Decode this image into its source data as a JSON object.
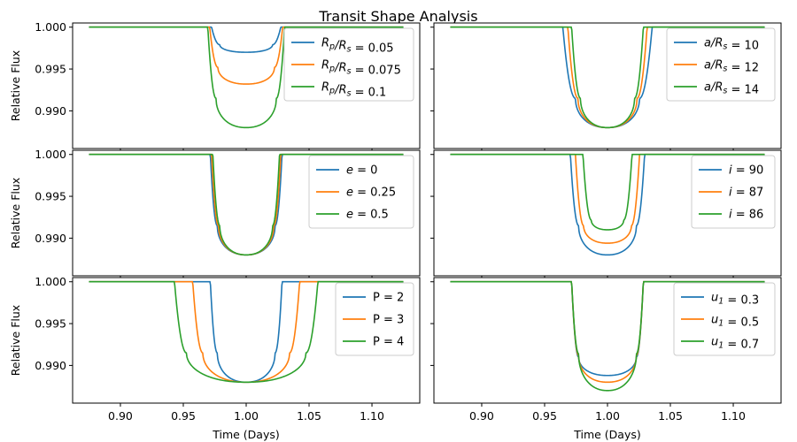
{
  "chart_data": {
    "type": "line",
    "title": "Transit Shape Analysis",
    "xlabel": "Time (Days)",
    "ylabel": "Relative Flux",
    "xlim": [
      0.862,
      1.138
    ],
    "ylim": [
      0.9855,
      1.0005
    ],
    "xticks": [
      "0.90",
      "0.95",
      "1.00",
      "1.05",
      "1.10"
    ],
    "yticks": [
      "1.000",
      "0.995",
      "0.990"
    ],
    "colors": [
      "#1f77b4",
      "#ff7f0e",
      "#2ca02c"
    ],
    "legend_placement": "top-right",
    "panels": [
      {
        "series": [
          {
            "name": "R_p/R_s = 0.05",
            "legend_parts": [
              [
                "R",
                "i"
              ],
              [
                "p",
                "sub"
              ],
              [
                "/",
                "i"
              ],
              [
                "R",
                "i"
              ],
              [
                "s",
                "sub"
              ],
              [
                " = 0.05",
                "n"
              ]
            ],
            "t1": 0.9725,
            "t2": 0.979,
            "t3": 1.021,
            "t4": 1.0275,
            "depth_center": 0.003,
            "depth_edge": 0.0021
          },
          {
            "name": "R_p/R_s = 0.075",
            "legend_parts": [
              [
                "R",
                "i"
              ],
              [
                "p",
                "sub"
              ],
              [
                "/",
                "i"
              ],
              [
                "R",
                "i"
              ],
              [
                "s",
                "sub"
              ],
              [
                " = 0.075",
                "n"
              ]
            ],
            "t1": 0.971,
            "t2": 0.9775,
            "t3": 1.0225,
            "t4": 1.029,
            "depth_center": 0.0068,
            "depth_edge": 0.0048
          },
          {
            "name": "R_p/R_s = 0.1",
            "legend_parts": [
              [
                "R",
                "i"
              ],
              [
                "p",
                "sub"
              ],
              [
                "/",
                "i"
              ],
              [
                "R",
                "i"
              ],
              [
                "s",
                "sub"
              ],
              [
                " = 0.1",
                "n"
              ]
            ],
            "t1": 0.9695,
            "t2": 0.976,
            "t3": 1.024,
            "t4": 1.0305,
            "depth_center": 0.012,
            "depth_edge": 0.0085
          }
        ]
      },
      {
        "series": [
          {
            "name": "a/R_s = 10",
            "legend_parts": [
              [
                "a",
                "i"
              ],
              [
                "/",
                "i"
              ],
              [
                "R",
                "i"
              ],
              [
                "s",
                "sub"
              ],
              [
                " = 10",
                "n"
              ]
            ],
            "t1": 0.9645,
            "t2": 0.9745,
            "t3": 1.0255,
            "t4": 1.0355,
            "depth_center": 0.012,
            "depth_edge": 0.0085
          },
          {
            "name": "a/R_s = 12",
            "legend_parts": [
              [
                "a",
                "i"
              ],
              [
                "/",
                "i"
              ],
              [
                "R",
                "i"
              ],
              [
                "s",
                "sub"
              ],
              [
                " = 12",
                "n"
              ]
            ],
            "t1": 0.9685,
            "t2": 0.9765,
            "t3": 1.0235,
            "t4": 1.0315,
            "depth_center": 0.012,
            "depth_edge": 0.0085
          },
          {
            "name": "a/R_s = 14",
            "legend_parts": [
              [
                "a",
                "i"
              ],
              [
                "/",
                "i"
              ],
              [
                "R",
                "i"
              ],
              [
                "s",
                "sub"
              ],
              [
                " = 14",
                "n"
              ]
            ],
            "t1": 0.9715,
            "t2": 0.9785,
            "t3": 1.0215,
            "t4": 1.0285,
            "depth_center": 0.012,
            "depth_edge": 0.0085
          }
        ]
      },
      {
        "series": [
          {
            "name": "e = 0",
            "legend_parts": [
              [
                "e",
                "i"
              ],
              [
                " = 0",
                "n"
              ]
            ],
            "t1": 0.9715,
            "t2": 0.977,
            "t3": 1.023,
            "t4": 1.0285,
            "depth_center": 0.012,
            "depth_edge": 0.0085
          },
          {
            "name": "e = 0.25",
            "legend_parts": [
              [
                "e",
                "i"
              ],
              [
                " = 0.25",
                "n"
              ]
            ],
            "t1": 0.9725,
            "t2": 0.978,
            "t3": 1.022,
            "t4": 1.0275,
            "depth_center": 0.012,
            "depth_edge": 0.0085
          },
          {
            "name": "e = 0.5",
            "legend_parts": [
              [
                "e",
                "i"
              ],
              [
                " = 0.5",
                "n"
              ]
            ],
            "t1": 0.9735,
            "t2": 0.979,
            "t3": 1.021,
            "t4": 1.0265,
            "depth_center": 0.012,
            "depth_edge": 0.0085
          }
        ]
      },
      {
        "series": [
          {
            "name": "i = 90",
            "legend_parts": [
              [
                "i",
                "i"
              ],
              [
                " = 90",
                "n"
              ]
            ],
            "t1": 0.9705,
            "t2": 0.977,
            "t3": 1.023,
            "t4": 1.0295,
            "depth_center": 0.012,
            "depth_edge": 0.0085
          },
          {
            "name": "i = 87",
            "legend_parts": [
              [
                "i",
                "i"
              ],
              [
                " = 87",
                "n"
              ]
            ],
            "t1": 0.9745,
            "t2": 0.981,
            "t3": 1.019,
            "t4": 1.0255,
            "depth_center": 0.0106,
            "depth_edge": 0.0085
          },
          {
            "name": "i = 86",
            "legend_parts": [
              [
                "i",
                "i"
              ],
              [
                " = 86",
                "n"
              ]
            ],
            "t1": 0.9805,
            "t2": 0.987,
            "t3": 1.013,
            "t4": 1.0195,
            "depth_center": 0.009,
            "depth_edge": 0.0078
          }
        ]
      },
      {
        "series": [
          {
            "name": "P = 2",
            "legend_parts": [
              [
                "P = 2",
                "n"
              ]
            ],
            "t1": 0.9715,
            "t2": 0.977,
            "t3": 1.023,
            "t4": 1.0285,
            "depth_center": 0.012,
            "depth_edge": 0.0085
          },
          {
            "name": "P = 3",
            "legend_parts": [
              [
                "P = 3",
                "n"
              ]
            ],
            "t1": 0.9575,
            "t2": 0.9655,
            "t3": 1.0345,
            "t4": 1.0425,
            "depth_center": 0.012,
            "depth_edge": 0.0085
          },
          {
            "name": "P = 4",
            "legend_parts": [
              [
                "P = 4",
                "n"
              ]
            ],
            "t1": 0.943,
            "t2": 0.9525,
            "t3": 1.0475,
            "t4": 1.057,
            "depth_center": 0.012,
            "depth_edge": 0.0085
          }
        ]
      },
      {
        "series": [
          {
            "name": "u_1 = 0.3",
            "legend_parts": [
              [
                "u",
                "i"
              ],
              [
                "1",
                "sub"
              ],
              [
                " = 0.3",
                "n"
              ]
            ],
            "t1": 0.9715,
            "t2": 0.977,
            "t3": 1.023,
            "t4": 1.0285,
            "depth_center": 0.0112,
            "depth_edge": 0.009
          },
          {
            "name": "u_1 = 0.5",
            "legend_parts": [
              [
                "u",
                "i"
              ],
              [
                "1",
                "sub"
              ],
              [
                " = 0.5",
                "n"
              ]
            ],
            "t1": 0.9715,
            "t2": 0.977,
            "t3": 1.023,
            "t4": 1.0285,
            "depth_center": 0.012,
            "depth_edge": 0.0088
          },
          {
            "name": "u_1 = 0.7",
            "legend_parts": [
              [
                "u",
                "i"
              ],
              [
                "1",
                "sub"
              ],
              [
                " = 0.7",
                "n"
              ]
            ],
            "t1": 0.9715,
            "t2": 0.977,
            "t3": 1.023,
            "t4": 1.0285,
            "depth_center": 0.013,
            "depth_edge": 0.0086
          }
        ]
      }
    ]
  }
}
